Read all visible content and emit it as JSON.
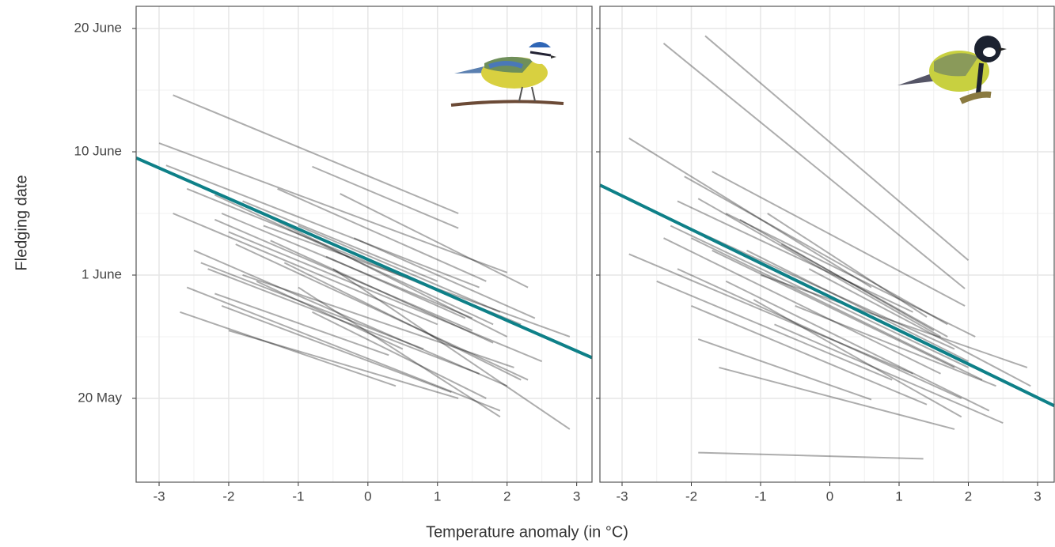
{
  "chart_data": [
    {
      "type": "segments",
      "ylabel": "Fledging date",
      "xlabel": "Temperature anomaly (in °C)",
      "xlim": [
        -3.33,
        3.22
      ],
      "ylim": [
        133.2,
        171.8
      ],
      "xticks": [
        -3,
        -2,
        -1,
        0,
        1,
        2,
        3
      ],
      "yticks": [
        {
          "value": 140,
          "label": "20 May"
        },
        {
          "value": 150,
          "label": "1 June"
        },
        {
          "value": 160,
          "label": "10 June"
        },
        {
          "value": 170,
          "label": "20 June"
        }
      ],
      "grid": true,
      "segment_color": "#000000",
      "fit_color": "#0e8088",
      "fit": [
        -3.33,
        159.5,
        3.22,
        143.3
      ],
      "segments": [
        [
          -2.8,
          164.6,
          1.3,
          155.0
        ],
        [
          -3.0,
          160.7,
          2.0,
          150.2
        ],
        [
          -2.9,
          158.9,
          1.6,
          149.0
        ],
        [
          -2.6,
          157.0,
          2.2,
          146.0
        ],
        [
          -2.2,
          156.5,
          1.8,
          146.0
        ],
        [
          -2.1,
          155.0,
          1.5,
          146.5
        ],
        [
          -2.0,
          153.5,
          2.5,
          143.0
        ],
        [
          -1.8,
          156.0,
          1.0,
          149.5
        ],
        [
          -0.8,
          158.8,
          1.3,
          153.8
        ],
        [
          -0.4,
          156.6,
          2.3,
          149.0
        ],
        [
          -2.5,
          152.0,
          2.0,
          141.0
        ],
        [
          -2.3,
          150.5,
          1.6,
          142.0
        ],
        [
          -2.7,
          147.0,
          0.4,
          141.0
        ],
        [
          -2.6,
          149.0,
          1.9,
          139.0
        ],
        [
          -2.1,
          147.5,
          1.2,
          140.5
        ],
        [
          -1.9,
          152.5,
          2.3,
          141.5
        ],
        [
          -1.5,
          154.0,
          2.9,
          145.0
        ],
        [
          -1.2,
          151.0,
          2.2,
          141.5
        ],
        [
          -1.0,
          149.0,
          1.9,
          138.5
        ],
        [
          -0.5,
          150.5,
          2.9,
          137.5
        ],
        [
          -0.8,
          147.0,
          1.7,
          140.0
        ],
        [
          -2.2,
          154.5,
          1.5,
          145.5
        ],
        [
          -1.7,
          155.5,
          2.0,
          145.0
        ],
        [
          -1.4,
          152.8,
          1.8,
          144.5
        ],
        [
          -2.4,
          151.0,
          0.8,
          144.0
        ],
        [
          -1.6,
          149.5,
          0.5,
          144.0
        ],
        [
          -1.0,
          154.0,
          1.9,
          147.0
        ],
        [
          -0.2,
          153.0,
          2.4,
          146.5
        ],
        [
          -2.0,
          145.5,
          1.3,
          140.0
        ],
        [
          -2.8,
          155.0,
          1.0,
          146.0
        ],
        [
          -1.3,
          157.0,
          1.7,
          149.5
        ],
        [
          -0.6,
          151.5,
          1.4,
          146.5
        ],
        [
          -1.8,
          150.0,
          2.1,
          142.5
        ],
        [
          -2.2,
          148.5,
          0.3,
          143.5
        ]
      ]
    },
    {
      "type": "segments",
      "xlim": [
        -3.32,
        3.24
      ],
      "ylim": [
        133.2,
        171.8
      ],
      "xticks": [
        -3,
        -2,
        -1,
        0,
        1,
        2,
        3
      ],
      "yticks": [
        140,
        150,
        160,
        170
      ],
      "grid": true,
      "segment_color": "#000000",
      "fit_color": "#0e8088",
      "fit": [
        -3.32,
        157.3,
        3.24,
        139.4
      ],
      "segments": [
        [
          -2.4,
          168.8,
          1.95,
          148.9
        ],
        [
          -1.8,
          169.4,
          2.0,
          151.2
        ],
        [
          -1.7,
          158.4,
          1.95,
          147.5
        ],
        [
          -0.9,
          155.0,
          1.4,
          146.6
        ],
        [
          -2.9,
          161.1,
          0.6,
          149.0
        ],
        [
          -2.1,
          158.0,
          1.7,
          146.0
        ],
        [
          -2.6,
          155.3,
          1.8,
          144.0
        ],
        [
          -2.3,
          154.0,
          2.0,
          142.5
        ],
        [
          -2.0,
          153.0,
          2.2,
          141.5
        ],
        [
          -1.9,
          156.2,
          1.6,
          145.0
        ],
        [
          -2.9,
          151.7,
          1.2,
          142.0
        ],
        [
          -2.2,
          150.5,
          1.9,
          140.0
        ],
        [
          -1.5,
          149.5,
          2.3,
          139.0
        ],
        [
          -2.0,
          147.5,
          1.4,
          139.5
        ],
        [
          -1.9,
          144.8,
          0.6,
          139.9
        ],
        [
          -1.6,
          142.5,
          1.8,
          137.5
        ],
        [
          -1.9,
          135.6,
          1.35,
          135.1
        ],
        [
          -0.8,
          146.0,
          2.5,
          138.0
        ],
        [
          -1.2,
          152.0,
          2.0,
          143.0
        ],
        [
          -1.0,
          150.0,
          2.85,
          142.5
        ],
        [
          -0.5,
          147.5,
          2.4,
          141.0
        ],
        [
          -2.4,
          153.0,
          1.6,
          142.0
        ],
        [
          -1.7,
          152.0,
          1.8,
          142.5
        ],
        [
          -1.3,
          154.5,
          1.5,
          145.5
        ],
        [
          -2.5,
          149.5,
          0.9,
          141.5
        ],
        [
          -0.3,
          150.5,
          2.9,
          141.0
        ],
        [
          -1.1,
          148.0,
          1.9,
          138.5
        ],
        [
          -2.2,
          156.0,
          1.2,
          147.0
        ],
        [
          -1.5,
          155.0,
          2.1,
          145.0
        ],
        [
          -0.7,
          152.5,
          1.7,
          145.0
        ]
      ]
    }
  ]
}
